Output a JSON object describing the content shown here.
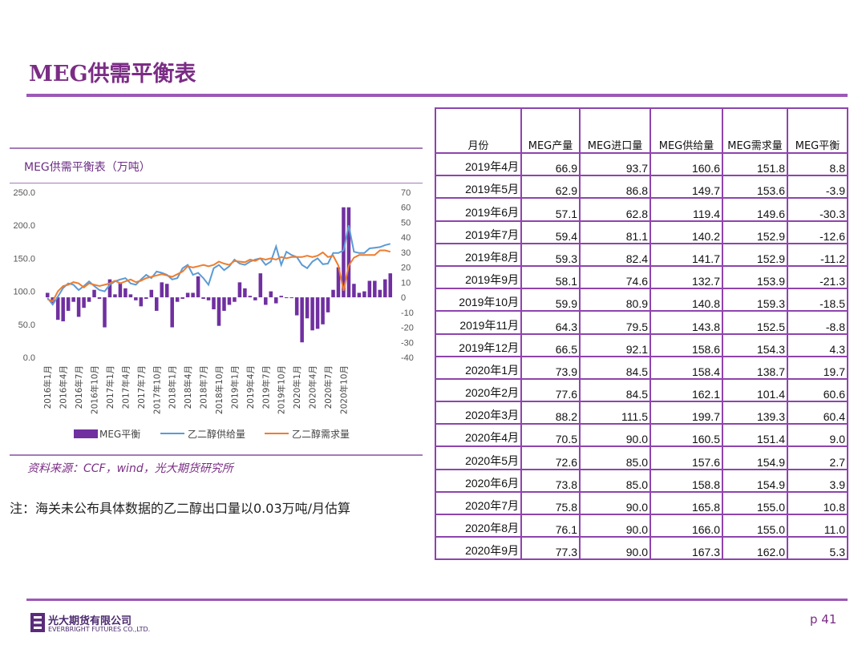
{
  "header": {
    "title": "MEG供需平衡表"
  },
  "chart": {
    "title": "MEG供需平衡表（万吨）",
    "source": "资料来源：CCF，wind，光大期货研究所",
    "note": "注：海关未公布具体数据的乙二醇出口量以0.03万吨/月估算"
  },
  "chart_data": {
    "type": "bar+line",
    "left_axis": {
      "ticks": [
        "250.0",
        "200.0",
        "150.0",
        "100.0",
        "50.0",
        "0.0"
      ],
      "ylim": [
        0,
        250
      ]
    },
    "right_axis": {
      "ticks": [
        "70",
        "60",
        "50",
        "40",
        "30",
        "20",
        "10",
        "0",
        "-10",
        "-20",
        "-30",
        "-40"
      ],
      "ylim": [
        -40,
        70
      ]
    },
    "x_labels": [
      "2016年1月",
      "2016年4月",
      "2016年7月",
      "2016年10月",
      "2017年1月",
      "2017年4月",
      "2017年7月",
      "2017年10月",
      "2018年1月",
      "2018年4月",
      "2018年7月",
      "2018年10月",
      "2019年1月",
      "2019年4月",
      "2019年7月",
      "2019年10月",
      "2020年1月",
      "2020年4月",
      "2020年7月",
      "2020年10月"
    ],
    "legend": [
      "MEG平衡",
      "乙二醇供给量",
      "乙二醇需求量"
    ],
    "colors": {
      "bar": "#7030a0",
      "supply": "#5b9bd5",
      "demand": "#ed7d31"
    },
    "series": [
      {
        "name": "MEG平衡",
        "axis": "right",
        "values": [
          3,
          -4,
          -15,
          -16,
          -9,
          -3,
          -13,
          -7,
          -3,
          5,
          -1,
          -20,
          12,
          2,
          10,
          6,
          2,
          -2,
          -6,
          -1,
          5,
          -9,
          10,
          9,
          -20,
          -3,
          -1,
          3,
          3,
          14,
          -1,
          -2,
          -8,
          -19,
          -9,
          -5,
          -3,
          10,
          6,
          1,
          -2,
          16,
          -5,
          4,
          -4,
          1,
          0,
          0,
          -12,
          -30,
          -14,
          -22,
          -21,
          -18,
          -10,
          5,
          20,
          60,
          60,
          9,
          3,
          4,
          11,
          11,
          5,
          12,
          16
        ]
      },
      {
        "name": "乙二醇供给量",
        "axis": "left",
        "values": [
          90,
          80,
          92,
          105,
          112,
          110,
          102,
          108,
          115,
          108,
          102,
          100,
          110,
          115,
          118,
          120,
          112,
          110,
          118,
          125,
          120,
          130,
          128,
          125,
          118,
          120,
          135,
          140,
          125,
          128,
          120,
          110,
          135,
          140,
          132,
          138,
          148,
          142,
          140,
          145,
          148,
          150,
          140,
          145,
          168,
          140,
          160,
          155,
          152,
          140,
          135,
          145,
          150,
          141,
          142,
          158,
          158,
          162,
          200,
          160,
          158,
          158,
          165,
          166,
          167,
          170,
          172
        ]
      },
      {
        "name": "乙二醇需求量",
        "axis": "left",
        "values": [
          88,
          85,
          100,
          108,
          110,
          114,
          112,
          106,
          112,
          110,
          108,
          110,
          112,
          116,
          112,
          115,
          118,
          114,
          116,
          120,
          122,
          124,
          126,
          124,
          122,
          126,
          130,
          138,
          136,
          138,
          140,
          138,
          140,
          145,
          142,
          140,
          146,
          145,
          144,
          148,
          146,
          150,
          148,
          150,
          148,
          152,
          150,
          152,
          152,
          152,
          154,
          152,
          154,
          159,
          152,
          154,
          139,
          101,
          139,
          151,
          155,
          155,
          155,
          155,
          162,
          162,
          160
        ]
      }
    ]
  },
  "table": {
    "headers": [
      "月份",
      "MEG产量",
      "MEG进口量",
      "MEG供给量",
      "MEG需求量",
      "MEG平衡"
    ],
    "rows": [
      [
        "2019年4月",
        "66.9",
        "93.7",
        "160.6",
        "151.8",
        "8.8"
      ],
      [
        "2019年5月",
        "62.9",
        "86.8",
        "149.7",
        "153.6",
        "-3.9"
      ],
      [
        "2019年6月",
        "57.1",
        "62.8",
        "119.4",
        "149.6",
        "-30.3"
      ],
      [
        "2019年7月",
        "59.4",
        "81.1",
        "140.2",
        "152.9",
        "-12.6"
      ],
      [
        "2019年8月",
        "59.3",
        "82.4",
        "141.7",
        "152.9",
        "-11.2"
      ],
      [
        "2019年9月",
        "58.1",
        "74.6",
        "132.7",
        "153.9",
        "-21.3"
      ],
      [
        "2019年10月",
        "59.9",
        "80.9",
        "140.8",
        "159.3",
        "-18.5"
      ],
      [
        "2019年11月",
        "64.3",
        "79.5",
        "143.8",
        "152.5",
        "-8.8"
      ],
      [
        "2019年12月",
        "66.5",
        "92.1",
        "158.6",
        "154.3",
        "4.3"
      ],
      [
        "2020年1月",
        "73.9",
        "84.5",
        "158.4",
        "138.7",
        "19.7"
      ],
      [
        "2020年2月",
        "77.6",
        "84.5",
        "162.1",
        "101.4",
        "60.6"
      ],
      [
        "2020年3月",
        "88.2",
        "111.5",
        "199.7",
        "139.3",
        "60.4"
      ],
      [
        "2020年4月",
        "70.5",
        "90.0",
        "160.5",
        "151.4",
        "9.0"
      ],
      [
        "2020年5月",
        "72.6",
        "85.0",
        "157.6",
        "154.9",
        "2.7"
      ],
      [
        "2020年6月",
        "73.8",
        "85.0",
        "158.8",
        "154.9",
        "3.9"
      ],
      [
        "2020年7月",
        "75.8",
        "90.0",
        "165.8",
        "155.0",
        "10.8"
      ],
      [
        "2020年8月",
        "76.1",
        "90.0",
        "166.0",
        "155.0",
        "11.0"
      ],
      [
        "2020年9月",
        "77.3",
        "90.0",
        "167.3",
        "162.0",
        "5.3"
      ]
    ]
  },
  "footer": {
    "company_cn": "光大期货有限公司",
    "company_en": "EVERBRIGHT FUTURES CO.,LTD.",
    "page": "p 41"
  }
}
